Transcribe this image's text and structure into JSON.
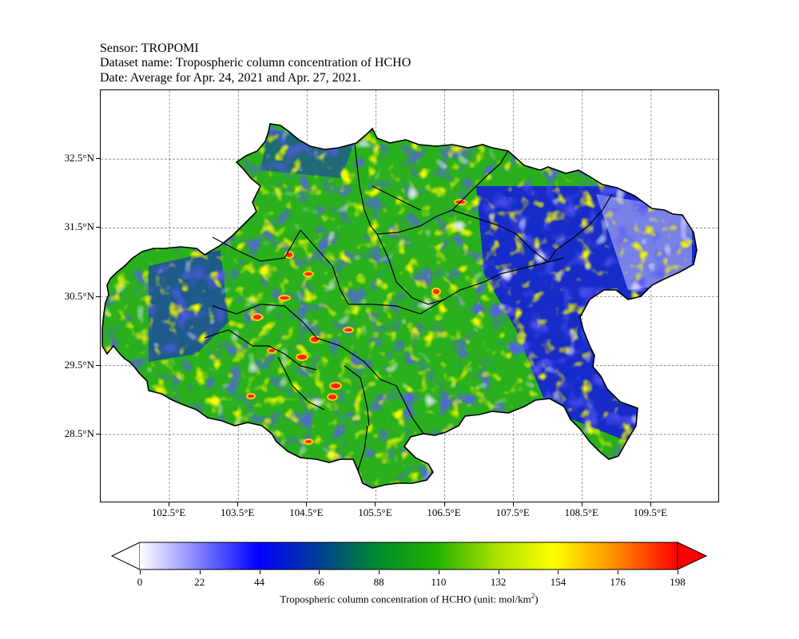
{
  "header": {
    "sensor": "Sensor: TROPOMI",
    "dataset": "Dataset name: Tropospheric column concentration of HCHO",
    "date": "Date: Average for Apr. 24, 2021 and Apr. 27, 2021."
  },
  "axes": {
    "lat_labels": [
      "32.5°N",
      "31.5°N",
      "30.5°N",
      "29.5°N",
      "28.5°N"
    ],
    "lat_values": [
      32.5,
      31.5,
      30.5,
      29.5,
      28.5
    ],
    "lon_labels": [
      "102.5°E",
      "103.5°E",
      "104.5°E",
      "105.5°E",
      "106.5°E",
      "107.5°E",
      "108.5°E",
      "109.5°E"
    ],
    "lon_values": [
      102.5,
      103.5,
      104.5,
      105.5,
      106.5,
      107.5,
      108.5,
      109.5
    ],
    "lon_range": [
      101.5,
      110.5
    ],
    "lat_range": [
      27.5,
      33.5
    ],
    "grid": true
  },
  "colorbar": {
    "ticks": [
      "0",
      "22",
      "44",
      "66",
      "88",
      "110",
      "132",
      "154",
      "176",
      "198"
    ],
    "range": [
      0,
      198
    ],
    "extend": "both",
    "colors": [
      "#ffffff",
      "#0000ff",
      "#00a000",
      "#ffff00",
      "#ff0000"
    ],
    "unit_prefix": "Tropospheric column concentration of HCHO (unit: mol/km",
    "unit_sup": "2",
    "unit_suffix": ")"
  },
  "colors": {
    "region_base": "#2ab01c",
    "low": "#1414e6",
    "very_low": "#c8c8ff",
    "high": "#e6f000",
    "hot": "#ff2020",
    "border": "#000000",
    "grid": "#808080"
  }
}
